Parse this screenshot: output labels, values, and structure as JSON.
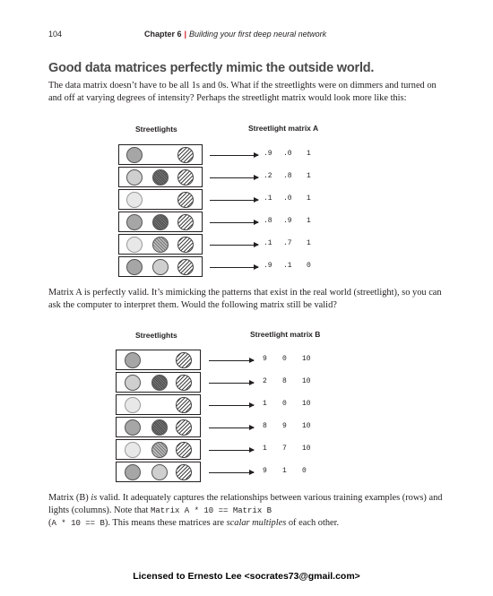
{
  "header": {
    "page_number": "104",
    "chapter": "Chapter 6",
    "chapter_title": "Building your first deep neural network"
  },
  "heading": "Good data matrices perfectly mimic the outside world.",
  "para1": "The data matrix doesn’t have to be all 1s and 0s. What if the streetlights were on dimmers and turned on and off at varying degrees of intensity? Perhaps the streetlight matrix would look more like this:",
  "figure_a": {
    "left_label": "Streetlights",
    "right_label": "Streetlight matrix A",
    "rows": [
      {
        "lights": [
          "on",
          "off",
          "hatch"
        ],
        "values": [
          ".9",
          ".0",
          "1"
        ]
      },
      {
        "lights": [
          "mid",
          "dark",
          "hatch"
        ],
        "values": [
          ".2",
          ".8",
          "1"
        ]
      },
      {
        "lights": [
          "dim",
          "off",
          "hatch"
        ],
        "values": [
          ".1",
          ".0",
          "1"
        ]
      },
      {
        "lights": [
          "on",
          "dark",
          "hatch"
        ],
        "values": [
          ".8",
          ".9",
          "1"
        ]
      },
      {
        "lights": [
          "dim",
          "grid",
          "hatch"
        ],
        "values": [
          ".1",
          ".7",
          "1"
        ]
      },
      {
        "lights": [
          "on",
          "mid",
          "hatch"
        ],
        "values": [
          ".9",
          ".1",
          "0"
        ]
      }
    ]
  },
  "para2": "Matrix A is perfectly valid. It’s mimicking the patterns that exist in the real world (streetlight), so you can ask the computer to interpret them. Would the following matrix still be valid?",
  "figure_b": {
    "left_label": "Streetlights",
    "right_label": "Streetlight matrix B",
    "rows": [
      {
        "lights": [
          "on",
          "off",
          "hatch"
        ],
        "values": [
          "9",
          "0",
          "10"
        ]
      },
      {
        "lights": [
          "mid",
          "dark",
          "hatch"
        ],
        "values": [
          "2",
          "8",
          "10"
        ]
      },
      {
        "lights": [
          "dim",
          "off",
          "hatch"
        ],
        "values": [
          "1",
          "0",
          "10"
        ]
      },
      {
        "lights": [
          "on",
          "dark",
          "hatch"
        ],
        "values": [
          "8",
          "9",
          "10"
        ]
      },
      {
        "lights": [
          "dim",
          "grid",
          "hatch"
        ],
        "values": [
          "1",
          "7",
          "10"
        ]
      },
      {
        "lights": [
          "on",
          "mid",
          "hatch"
        ],
        "values": [
          "9",
          "1",
          "0"
        ]
      }
    ]
  },
  "para3": {
    "t1": "Matrix (B) ",
    "t2": "is",
    "t3": " valid. It adequately captures the relationships between various training examples (rows) and lights (columns). Note that ",
    "code1": "Matrix A * 10 == Matrix B",
    "t4": "(",
    "code2": "A * 10 == B",
    "t5": "). This means these matrices are ",
    "t6": "scalar multiples",
    "t7": " of each other."
  },
  "footer": "Licensed to Ernesto Lee <socrates73@gmail.com>"
}
